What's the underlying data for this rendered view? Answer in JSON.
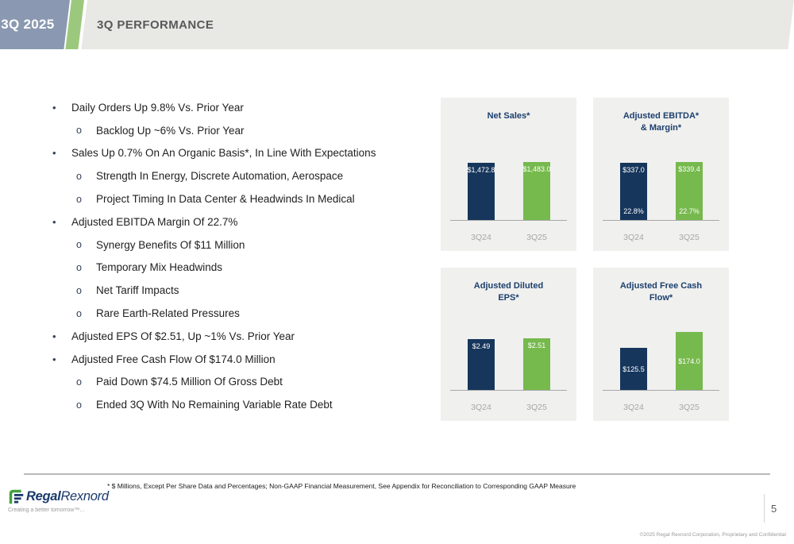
{
  "slide": {
    "badge": "3Q 2025",
    "title": "3Q PERFORMANCE",
    "page_number": "5",
    "footnote": "* $ Millions, Except Per Share Data and Percentages; Non-GAAP Financial Measurement, See Appendix  for Reconciliation to Corresponding GAAP Measure",
    "copyright": "©2025 Regal Rexnord Corporation, Proprietary and Confidential"
  },
  "logo": {
    "name_bold": "Regal",
    "name_regular": "Rexnord",
    "tagline": "Creating a better tomorrow™…"
  },
  "bullets": [
    {
      "level": 1,
      "text": "Daily Orders Up 9.8% Vs. Prior Year"
    },
    {
      "level": 2,
      "text": "Backlog Up ~6% Vs. Prior Year"
    },
    {
      "level": 1,
      "text": "Sales Up 0.7% On An Organic Basis*, In Line With Expectations"
    },
    {
      "level": 2,
      "text": "Strength In Energy, Discrete Automation, Aerospace"
    },
    {
      "level": 2,
      "text": "Project Timing In Data Center & Headwinds In Medical"
    },
    {
      "level": 1,
      "text": "Adjusted EBITDA Margin Of 22.7%"
    },
    {
      "level": 2,
      "text": "Synergy Benefits Of $11 Million"
    },
    {
      "level": 2,
      "text": "Temporary Mix Headwinds"
    },
    {
      "level": 2,
      "text": "Net Tariff Impacts"
    },
    {
      "level": 2,
      "text": "Rare Earth-Related Pressures"
    },
    {
      "level": 1,
      "text": "Adjusted EPS Of $2.51, Up ~1% Vs. Prior Year"
    },
    {
      "level": 1,
      "text": "Adjusted Free Cash Flow Of $174.0 Million"
    },
    {
      "level": 2,
      "text": "Paid Down $74.5 Million Of Gross Debt"
    },
    {
      "level": 2,
      "text": "Ended 3Q With No Remaining Variable Rate Debt"
    }
  ],
  "colors": {
    "bar_navy": "#16365c",
    "bar_green": "#76b94d",
    "badge_blue_gray": "#8a99b1",
    "accent_green_stripe": "#9cc87d",
    "header_band_gray": "#e8e8e5",
    "chart_title_navy": "#1b3f6e",
    "panel_bg": "#f0f0ee"
  },
  "chart_data": [
    {
      "type": "bar",
      "title_lines": [
        "Net Sales*"
      ],
      "categories": [
        "3Q24",
        "3Q25"
      ],
      "values": [
        1472.8,
        1483.0
      ],
      "value_labels": [
        "$1,472.8",
        "$1,483.0"
      ],
      "ylim": [
        0,
        1483
      ],
      "label_pos": "top",
      "grid": false,
      "legend": "none"
    },
    {
      "type": "bar",
      "title_lines": [
        "Adjusted EBITDA*",
        "& Margin*"
      ],
      "categories": [
        "3Q24",
        "3Q25"
      ],
      "values": [
        337.0,
        339.4
      ],
      "value_labels": [
        "$337.0",
        "$339.4"
      ],
      "sub_labels": [
        "22.8%",
        "22.7%"
      ],
      "ylim": [
        0,
        339.4
      ],
      "label_pos": "top",
      "grid": false,
      "legend": "none"
    },
    {
      "type": "bar",
      "title_lines": [
        "Adjusted Diluted",
        "EPS*"
      ],
      "categories": [
        "3Q24",
        "3Q25"
      ],
      "values": [
        2.49,
        2.51
      ],
      "value_labels": [
        "$2.49",
        "$2.51"
      ],
      "ylim": [
        0,
        2.82
      ],
      "label_pos": "top",
      "grid": false,
      "legend": "none"
    },
    {
      "type": "bar",
      "title_lines": [
        "Adjusted Free Cash",
        "Flow*"
      ],
      "categories": [
        "3Q24",
        "3Q25"
      ],
      "values": [
        125.5,
        174.0
      ],
      "value_labels": [
        "$125.5",
        "$174.0"
      ],
      "ylim": [
        0,
        174
      ],
      "label_pos": "middle",
      "grid": false,
      "legend": "none"
    }
  ]
}
